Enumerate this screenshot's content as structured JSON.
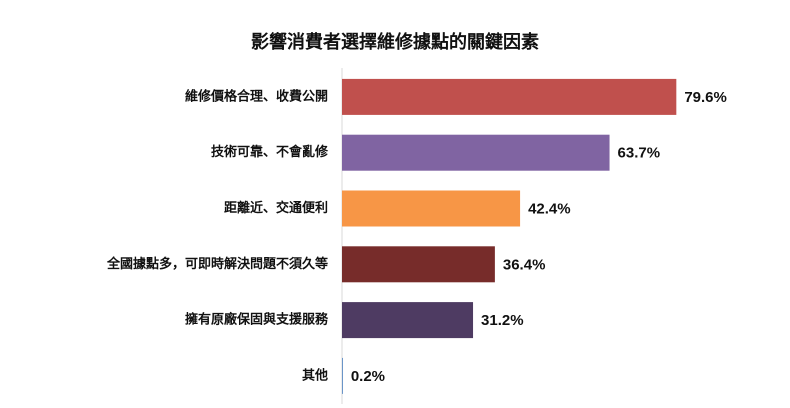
{
  "chart_data": {
    "type": "bar",
    "orientation": "horizontal",
    "title": "影響消費者選擇維修據點的關鍵因素",
    "categories": [
      "維修價格合理、收費公開",
      "技術可靠、不會亂修",
      "距離近、交通便利",
      "全國據點多，可即時解決問題不須久等",
      "擁有原廠保固與支援服務",
      "其他"
    ],
    "values": [
      79.6,
      63.7,
      42.4,
      36.4,
      31.2,
      0.2
    ],
    "value_labels": [
      "79.6%",
      "63.7%",
      "42.4%",
      "36.4%",
      "31.2%",
      "0.2%"
    ],
    "colors": [
      "#c0504d",
      "#8064a2",
      "#f79646",
      "#772c2a",
      "#4e3b62",
      "#4f81bd"
    ],
    "xlim": [
      0,
      100
    ],
    "xlabel": "",
    "ylabel": "",
    "grid": false,
    "legend": "none"
  }
}
